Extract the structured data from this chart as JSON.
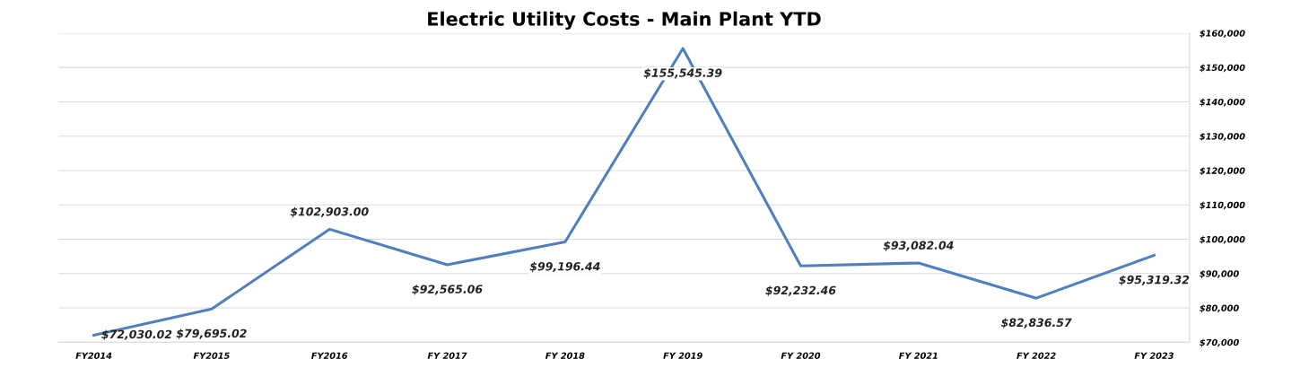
{
  "chart_data": {
    "type": "line",
    "title": "Electric Utility Costs - Main Plant YTD",
    "categories": [
      "FY2014",
      "FY2015",
      "FY2016",
      "FY 2017",
      "FY 2018",
      "FY 2019",
      "FY 2020",
      "FY 2021",
      "FY 2022",
      "FY 2023"
    ],
    "series": [
      {
        "color": "#4f7fbf",
        "values": [
          72030.02,
          79695.02,
          102903.0,
          92565.06,
          99196.44,
          155545.39,
          92232.46,
          93082.04,
          82836.57,
          95319.32
        ],
        "value_labels": [
          "$72,030.02",
          "$79,695.02",
          "$102,903.00",
          "$92,565.06",
          "$99,196.44",
          "$155,545.39",
          "$92,232.46",
          "$93,082.04",
          "$82,836.57",
          "$95,319.32"
        ]
      }
    ],
    "ylim": [
      70000,
      160000
    ],
    "yticks": [
      {
        "value": 70000,
        "label": "$70,000"
      },
      {
        "value": 80000,
        "label": "$80,000"
      },
      {
        "value": 90000,
        "label": "$90,000"
      },
      {
        "value": 100000,
        "label": "$100,000"
      },
      {
        "value": 110000,
        "label": "$110,000"
      },
      {
        "value": 120000,
        "label": "$120,000"
      },
      {
        "value": 130000,
        "label": "$130,000"
      },
      {
        "value": 140000,
        "label": "$140,000"
      },
      {
        "value": 150000,
        "label": "$150,000"
      },
      {
        "value": 160000,
        "label": "$160,000"
      }
    ],
    "grid": "y",
    "marker": "none",
    "line_style": "solid"
  }
}
